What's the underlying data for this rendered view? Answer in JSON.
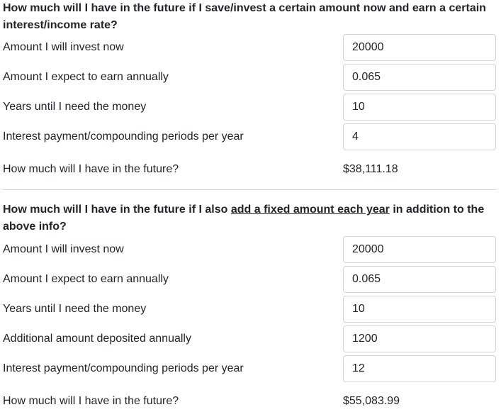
{
  "section1": {
    "heading": "How much will I have in the future if I save/invest a certain amount now and earn a certain interest/income rate?",
    "fields": [
      {
        "label": "Amount I will invest now",
        "value": "20000"
      },
      {
        "label": "Amount I expect to earn annually",
        "value": "0.065"
      },
      {
        "label": "Years until I need the money",
        "value": "10"
      },
      {
        "label": "Interest payment/compounding periods per year",
        "value": "4"
      }
    ],
    "result_label": "How much will I have in the future?",
    "result_value": "$38,111.18"
  },
  "section2": {
    "heading_pre": "How much will I have in the future if I also ",
    "heading_link": "add a fixed amount each year",
    "heading_post": " in addition to the above info?",
    "fields": [
      {
        "label": "Amount I will invest now",
        "value": "20000"
      },
      {
        "label": "Amount I expect to earn annually",
        "value": "0.065"
      },
      {
        "label": "Years until I need the money",
        "value": "10"
      },
      {
        "label": "Additional amount deposited annually",
        "value": "1200"
      },
      {
        "label": "Interest payment/compounding periods per year",
        "value": "12"
      }
    ],
    "result_label": "How much will I have in the future?",
    "result_value": "$55,083.99"
  }
}
